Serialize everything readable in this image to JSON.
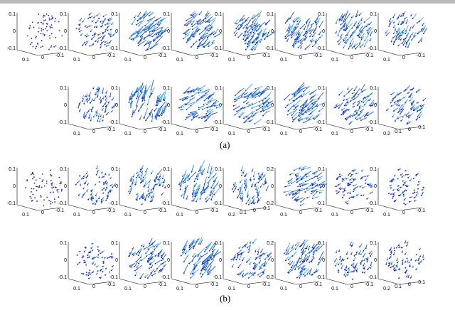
{
  "figure": {
    "captions": [
      "(a)",
      "(b)"
    ]
  },
  "colors": {
    "point": "#1b1fd6",
    "vector_dark": "#1f5ec9",
    "vector_light": "#3fa9f0",
    "axis": "#000000",
    "top_bar": "#b9b9b9"
  },
  "chart_data": {
    "type": "scatter",
    "description_of_marks": "3D point clouds with motion vectors",
    "panels": [
      {
        "id": "a-r1-1",
        "block": "a",
        "row": 1,
        "col": 1,
        "z_ticks": [
          "0.1",
          "0",
          "-0.1"
        ],
        "x_ticks": [
          "0.1",
          "0",
          "-0.1"
        ],
        "vector_strength": 0.05,
        "seed": 11
      },
      {
        "id": "a-r1-2",
        "block": "a",
        "row": 1,
        "col": 2,
        "z_ticks": [
          "0.1",
          "0",
          "-0.1"
        ],
        "x_ticks": [
          "0.1",
          "0",
          "-0.1"
        ],
        "vector_strength": 0.35,
        "seed": 12
      },
      {
        "id": "a-r1-3",
        "block": "a",
        "row": 1,
        "col": 3,
        "z_ticks": [
          "0.1",
          "0",
          "-0.1"
        ],
        "x_ticks": [
          "0.1",
          "0",
          "-0.1"
        ],
        "vector_strength": 0.9,
        "seed": 13
      },
      {
        "id": "a-r1-4",
        "block": "a",
        "row": 1,
        "col": 4,
        "z_ticks": [
          "0.1",
          "0",
          "-0.1"
        ],
        "x_ticks": [
          "0.1",
          "0",
          "-0.1"
        ],
        "vector_strength": 0.85,
        "seed": 14
      },
      {
        "id": "a-r1-5",
        "block": "a",
        "row": 1,
        "col": 5,
        "z_ticks": [
          "0.1",
          "0",
          "-0.1"
        ],
        "x_ticks": [
          "0.1",
          "0",
          "-0.1"
        ],
        "vector_strength": 0.8,
        "seed": 15
      },
      {
        "id": "a-r1-6",
        "block": "a",
        "row": 1,
        "col": 6,
        "z_ticks": [
          "0.1",
          "0",
          "-0.1"
        ],
        "x_ticks": [
          "0.1",
          "0",
          "-0.1"
        ],
        "vector_strength": 0.7,
        "seed": 16
      },
      {
        "id": "a-r1-7",
        "block": "a",
        "row": 1,
        "col": 7,
        "z_ticks": [
          "0.1",
          "0",
          "-0.1"
        ],
        "x_ticks": [
          "0.1",
          "0",
          "-0.1"
        ],
        "vector_strength": 0.75,
        "seed": 17
      },
      {
        "id": "a-r1-8",
        "block": "a",
        "row": 1,
        "col": 8,
        "z_ticks": [
          "0.1",
          "0",
          "-0.1"
        ],
        "x_ticks": [
          "0.1",
          "0",
          "-0.1"
        ],
        "vector_strength": 0.55,
        "seed": 18
      },
      {
        "id": "a-r2-1",
        "block": "a",
        "row": 2,
        "col": 2,
        "z_ticks": [
          "0.1",
          "0",
          "-0.1"
        ],
        "x_ticks": [
          "0.1",
          "0",
          "-0.1"
        ],
        "vector_strength": 0.45,
        "seed": 21
      },
      {
        "id": "a-r2-2",
        "block": "a",
        "row": 2,
        "col": 3,
        "z_ticks": [
          "0.1",
          "0",
          "-0.1"
        ],
        "x_ticks": [
          "0.1",
          "0",
          "-0.1"
        ],
        "vector_strength": 0.95,
        "seed": 22
      },
      {
        "id": "a-r2-3",
        "block": "a",
        "row": 2,
        "col": 4,
        "z_ticks": [
          "0.1",
          "0",
          "-0.1"
        ],
        "x_ticks": [
          "0.1",
          "0",
          "-0.1"
        ],
        "vector_strength": 0.8,
        "seed": 23
      },
      {
        "id": "a-r2-4",
        "block": "a",
        "row": 2,
        "col": 5,
        "z_ticks": [
          "0.1",
          "0",
          "-0.1"
        ],
        "x_ticks": [
          "0.1",
          "0",
          "-0.1"
        ],
        "vector_strength": 0.85,
        "seed": 24
      },
      {
        "id": "a-r2-5",
        "block": "a",
        "row": 2,
        "col": 6,
        "z_ticks": [
          "0.1",
          "0",
          "-0.1"
        ],
        "x_ticks": [
          "0.1",
          "0",
          "-0.1"
        ],
        "vector_strength": 0.85,
        "seed": 25
      },
      {
        "id": "a-r2-6",
        "block": "a",
        "row": 2,
        "col": 7,
        "z_ticks": [
          "0.1",
          "0",
          "-0.1"
        ],
        "x_ticks": [
          "0.1",
          "0",
          "-0.1"
        ],
        "vector_strength": 0.6,
        "seed": 26
      },
      {
        "id": "a-r2-7",
        "block": "a",
        "row": 2,
        "col": 8,
        "z_ticks": [
          "0.1",
          "0",
          "-0.1"
        ],
        "x_ticks": [
          "0.2",
          "0.1",
          "0",
          "-0.1"
        ],
        "vector_strength": 0.55,
        "seed": 27
      },
      {
        "id": "b-r1-1",
        "block": "b",
        "row": 1,
        "col": 1,
        "z_ticks": [
          "0.1",
          "0",
          "-0.1"
        ],
        "x_ticks": [
          "0.1",
          "0",
          "-0.1"
        ],
        "vector_strength": 0.05,
        "seed": 31
      },
      {
        "id": "b-r1-2",
        "block": "b",
        "row": 1,
        "col": 2,
        "z_ticks": [
          "0.1",
          "0",
          "-0.1"
        ],
        "x_ticks": [
          "0.1",
          "0",
          "-0.1"
        ],
        "vector_strength": 0.3,
        "seed": 32
      },
      {
        "id": "b-r1-3",
        "block": "b",
        "row": 1,
        "col": 3,
        "z_ticks": [
          "0.1",
          "0",
          "-0.1"
        ],
        "x_ticks": [
          "0.1",
          "0",
          "-0.1"
        ],
        "vector_strength": 0.55,
        "seed": 33
      },
      {
        "id": "b-r1-4",
        "block": "b",
        "row": 1,
        "col": 4,
        "z_ticks": [
          "0.1",
          "0",
          "-0.1"
        ],
        "x_ticks": [
          "0.1",
          "0",
          "-0.1"
        ],
        "vector_strength": 0.85,
        "seed": 34
      },
      {
        "id": "b-r1-5",
        "block": "b",
        "row": 1,
        "col": 5,
        "z_ticks": [
          "0.1",
          "0",
          "-0.1"
        ],
        "x_ticks": [
          "0.2",
          "0.1",
          "0",
          "-0.1"
        ],
        "vector_strength": 0.45,
        "seed": 35
      },
      {
        "id": "b-r1-6",
        "block": "b",
        "row": 1,
        "col": 6,
        "z_ticks": [
          "0.2",
          "0",
          "-0.2"
        ],
        "x_ticks": [
          "0.1",
          "0",
          "-0.1"
        ],
        "vector_strength": 0.7,
        "seed": 36
      },
      {
        "id": "b-r1-7",
        "block": "b",
        "row": 1,
        "col": 7,
        "z_ticks": [
          "0.1",
          "0",
          "-0.1"
        ],
        "x_ticks": [
          "0.1",
          "0",
          "-0.1"
        ],
        "vector_strength": 0.3,
        "seed": 37
      },
      {
        "id": "b-r1-8",
        "block": "b",
        "row": 1,
        "col": 8,
        "z_ticks": [
          "0.1",
          "0",
          "-0.1"
        ],
        "x_ticks": [
          "0.1",
          "0",
          "-0.1"
        ],
        "vector_strength": 0.25,
        "seed": 38
      },
      {
        "id": "b-r2-1",
        "block": "b",
        "row": 2,
        "col": 2,
        "z_ticks": [
          "0.1",
          "0",
          "-0.1"
        ],
        "x_ticks": [
          "0.1",
          "0",
          "-0.1"
        ],
        "vector_strength": 0.2,
        "seed": 41
      },
      {
        "id": "b-r2-2",
        "block": "b",
        "row": 2,
        "col": 3,
        "z_ticks": [
          "0.1",
          "0",
          "-0.1"
        ],
        "x_ticks": [
          "0.1",
          "0",
          "-0.1"
        ],
        "vector_strength": 0.6,
        "seed": 42
      },
      {
        "id": "b-r2-3",
        "block": "b",
        "row": 2,
        "col": 4,
        "z_ticks": [
          "0.1",
          "0",
          "-0.1"
        ],
        "x_ticks": [
          "0.1",
          "0",
          "-0.1"
        ],
        "vector_strength": 0.9,
        "seed": 43
      },
      {
        "id": "b-r2-4",
        "block": "b",
        "row": 2,
        "col": 5,
        "z_ticks": [
          "0.1",
          "0",
          "-0.1"
        ],
        "x_ticks": [
          "0.1",
          "0",
          "-0.1"
        ],
        "vector_strength": 0.5,
        "seed": 44
      },
      {
        "id": "b-r2-5",
        "block": "b",
        "row": 2,
        "col": 6,
        "z_ticks": [
          "0.2",
          "0",
          "-0.2"
        ],
        "x_ticks": [
          "0.1",
          "0",
          "-0.1"
        ],
        "vector_strength": 0.8,
        "seed": 45
      },
      {
        "id": "b-r2-6",
        "block": "b",
        "row": 2,
        "col": 7,
        "z_ticks": [
          "0.1",
          "0",
          "-0.1"
        ],
        "x_ticks": [
          "0.1",
          "0",
          "-0.1"
        ],
        "vector_strength": 0.35,
        "seed": 46
      },
      {
        "id": "b-r2-7",
        "block": "b",
        "row": 2,
        "col": 8,
        "z_ticks": [
          "0.1",
          "0",
          "-0.1"
        ],
        "x_ticks": [
          "0.2",
          "0.1",
          "0",
          "-0.1"
        ],
        "vector_strength": 0.25,
        "seed": 47
      }
    ]
  }
}
